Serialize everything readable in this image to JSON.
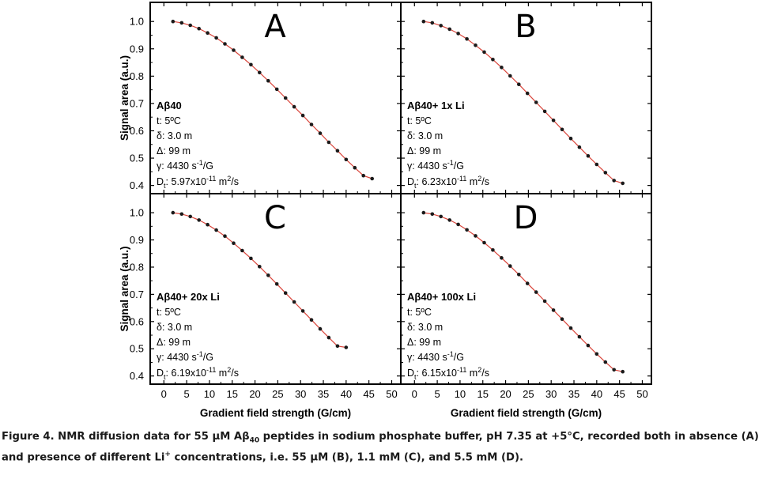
{
  "figure": {
    "x_axis_label": "Gradient field strength (G/cm)",
    "y_axis_label": "Signal area (a.u.)",
    "x_ticks": [
      "0",
      "5",
      "10",
      "15",
      "20",
      "25",
      "30",
      "35",
      "40",
      "45",
      "50"
    ],
    "y_ticks": [
      "0.4",
      "0.5",
      "0.6",
      "0.7",
      "0.8",
      "0.9",
      "1.0"
    ]
  },
  "caption": {
    "part1": "Figure 4. NMR diffusion data for 55 µM Aβ",
    "sub": "40",
    "part2": " peptides in sodium phosphate buffer, pH 7.35 at +5°C, recorded both in absence (A) and presence of different Li",
    "sup": "+",
    "part3": " concentrations, i.e. 55 µM (B), 1.1 mM (C), and 5.5 mM (D)."
  },
  "colors": {
    "fit_line": "#d9443a",
    "points": "#1a1a1a",
    "frame": "#000000"
  },
  "chart_data": [
    {
      "type": "scatter",
      "panel_letter": "A",
      "xlabel": "Gradient field strength (G/cm)",
      "ylabel": "Signal area (a.u.)",
      "xlim": [
        -3,
        52
      ],
      "ylim": [
        0.37,
        1.07
      ],
      "annotation": {
        "title": "Aβ40",
        "t": "t: 5ºC",
        "delta_small": "δ: 3.0 m",
        "delta_big": "Δ: 99 m",
        "gamma_pre": "γ: 4430 s",
        "gamma_sup": "-1",
        "gamma_post": "/G",
        "D_pre": "D",
        "D_sub": "t",
        "D_mid": ": 5.97x10",
        "D_sup": "-11",
        "D_post": " m",
        "D_sup2": "2",
        "D_end": "/s"
      },
      "x": [
        2,
        3.9,
        5.8,
        7.7,
        9.6,
        11.5,
        13.4,
        15.3,
        17.2,
        19.1,
        21,
        22.9,
        24.8,
        26.7,
        28.6,
        30.5,
        32.4,
        34.3,
        36.2,
        38.1,
        40,
        41.9,
        43.8,
        45.7
      ],
      "y": [
        1.0,
        0.995,
        0.986,
        0.974,
        0.958,
        0.94,
        0.918,
        0.895,
        0.869,
        0.842,
        0.813,
        0.783,
        0.752,
        0.72,
        0.688,
        0.656,
        0.623,
        0.591,
        0.558,
        0.527,
        0.495,
        0.465,
        0.436,
        0.425
      ]
    },
    {
      "type": "scatter",
      "panel_letter": "B",
      "xlabel": "Gradient field strength (G/cm)",
      "ylabel": "Signal area (a.u.)",
      "xlim": [
        -3,
        52
      ],
      "ylim": [
        0.37,
        1.07
      ],
      "annotation": {
        "title": "Aβ40+ 1x Li",
        "t": "t: 5ºC",
        "delta_small": "δ: 3.0 m",
        "delta_big": "Δ: 99 m",
        "gamma_pre": "γ: 4430 s",
        "gamma_sup": "-1",
        "gamma_post": "/G",
        "D_pre": "D",
        "D_sub": "t",
        "D_mid": ": 6.23x10",
        "D_sup": "-11",
        "D_post": " m",
        "D_sup2": "2",
        "D_end": "/s"
      },
      "x": [
        2,
        3.9,
        5.8,
        7.7,
        9.6,
        11.5,
        13.4,
        15.3,
        17.2,
        19.1,
        21,
        22.9,
        24.8,
        26.7,
        28.6,
        30.5,
        32.4,
        34.3,
        36.2,
        38.1,
        40,
        41.9,
        43.8,
        45.7
      ],
      "y": [
        1.0,
        0.995,
        0.985,
        0.972,
        0.956,
        0.936,
        0.913,
        0.888,
        0.861,
        0.832,
        0.801,
        0.77,
        0.737,
        0.704,
        0.671,
        0.638,
        0.605,
        0.572,
        0.54,
        0.508,
        0.477,
        0.447,
        0.418,
        0.408
      ]
    },
    {
      "type": "scatter",
      "panel_letter": "C",
      "xlabel": "Gradient field strength (G/cm)",
      "ylabel": "Signal area (a.u.)",
      "xlim": [
        -3,
        52
      ],
      "ylim": [
        0.37,
        1.07
      ],
      "annotation": {
        "title": "Aβ40+ 20x Li",
        "t": "t: 5ºC",
        "delta_small": "δ: 3.0 m",
        "delta_big": "Δ: 99 m",
        "gamma_pre": "γ: 4430 s",
        "gamma_sup": "-1",
        "gamma_post": "/G",
        "D_pre": "D",
        "D_sub": "t",
        "D_mid": ": 6.19x10",
        "D_sup": "-11",
        "D_post": " m",
        "D_sup2": "2",
        "D_end": "/s"
      },
      "x": [
        2,
        3.9,
        5.8,
        7.7,
        9.6,
        11.5,
        13.4,
        15.3,
        17.2,
        19.1,
        21,
        22.9,
        24.8,
        26.7,
        28.6,
        30.5,
        32.4,
        34.3,
        36.2,
        38.1,
        40
      ],
      "y": [
        1.0,
        0.995,
        0.986,
        0.973,
        0.956,
        0.936,
        0.914,
        0.888,
        0.861,
        0.832,
        0.802,
        0.77,
        0.738,
        0.705,
        0.672,
        0.639,
        0.606,
        0.573,
        0.541,
        0.51,
        0.505
      ]
    },
    {
      "type": "scatter",
      "panel_letter": "D",
      "xlabel": "Gradient field strength (G/cm)",
      "ylabel": "Signal area (a.u.)",
      "xlim": [
        -3,
        52
      ],
      "ylim": [
        0.37,
        1.07
      ],
      "annotation": {
        "title": "Aβ40+ 100x Li",
        "t": "t: 5ºC",
        "delta_small": "δ: 3.0 m",
        "delta_big": "Δ: 99 m",
        "gamma_pre": "γ: 4430 s",
        "gamma_sup": "-1",
        "gamma_post": "/G",
        "D_pre": "D",
        "D_sub": "t",
        "D_mid": ": 6.15x10",
        "D_sup": "-11",
        "D_post": " m",
        "D_sup2": "2",
        "D_end": "/s"
      },
      "x": [
        2,
        3.9,
        5.8,
        7.7,
        9.6,
        11.5,
        13.4,
        15.3,
        17.2,
        19.1,
        21,
        22.9,
        24.8,
        26.7,
        28.6,
        30.5,
        32.4,
        34.3,
        36.2,
        38.1,
        40,
        41.9,
        43.8,
        45.7
      ],
      "y": [
        1.0,
        0.995,
        0.986,
        0.973,
        0.957,
        0.937,
        0.915,
        0.89,
        0.863,
        0.834,
        0.804,
        0.773,
        0.74,
        0.708,
        0.675,
        0.642,
        0.609,
        0.576,
        0.544,
        0.512,
        0.481,
        0.451,
        0.423,
        0.416
      ]
    }
  ]
}
